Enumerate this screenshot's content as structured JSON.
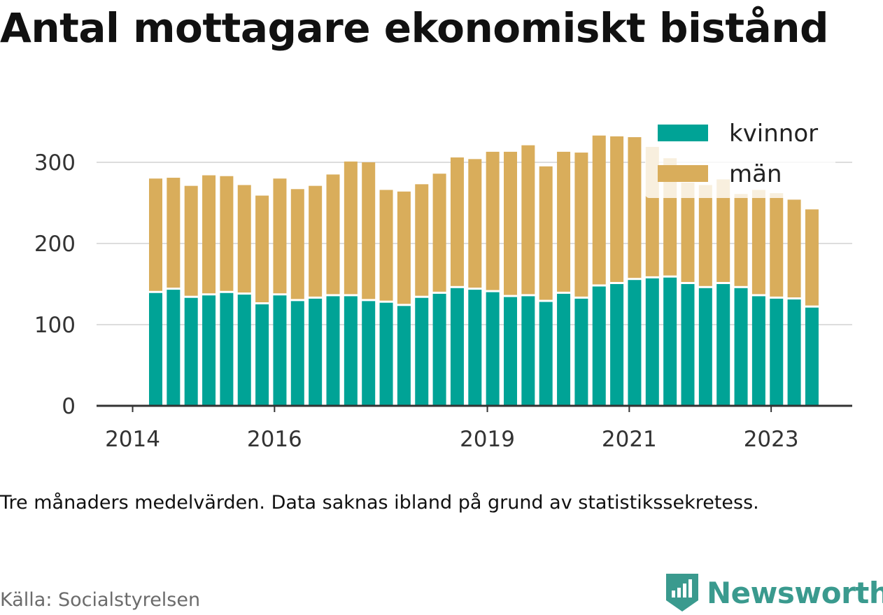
{
  "title": "Antal mottagare ekonomiskt bistånd",
  "caption": "Tre månaders medelvärden. Data saknas ibland på grund av statistikssekretess.",
  "source": "Källa: Socialstyrelsen",
  "brand": {
    "name": "Newsworthy",
    "icon": "newsworthy-logo-icon",
    "color": "#3a9a8e"
  },
  "colors": {
    "kvinnor": "#00a396",
    "man": "#d9ad5b",
    "axis": "#333333",
    "grid": "#dddddd"
  },
  "chart_data": {
    "type": "bar",
    "stacked": true,
    "x_tick_labels": [
      "2014",
      "2016",
      "2019",
      "2021",
      "2023"
    ],
    "x_tick_positions": [
      -1.3,
      6.7,
      18.7,
      26.7,
      34.7
    ],
    "y_ticks": [
      0,
      100,
      200,
      300
    ],
    "ylim": [
      0,
      340
    ],
    "grid": true,
    "legend_position": "top-right",
    "series": [
      {
        "name": "kvinnor",
        "color": "#00a396",
        "values": [
          139,
          143,
          133,
          136,
          139,
          137,
          125,
          136,
          129,
          132,
          135,
          135,
          129,
          127,
          123,
          133,
          138,
          145,
          143,
          140,
          134,
          135,
          128,
          138,
          132,
          147,
          150,
          155,
          157,
          158,
          150,
          145,
          150,
          145,
          135,
          132,
          131,
          121
        ]
      },
      {
        "name": "män",
        "color": "#d9ad5b",
        "values": [
          141,
          138,
          138,
          148,
          144,
          135,
          134,
          144,
          138,
          139,
          150,
          166,
          171,
          139,
          141,
          140,
          148,
          161,
          161,
          173,
          179,
          186,
          167,
          175,
          180,
          186,
          182,
          176,
          162,
          147,
          125,
          127,
          129,
          116,
          131,
          130,
          123,
          121
        ]
      }
    ]
  }
}
